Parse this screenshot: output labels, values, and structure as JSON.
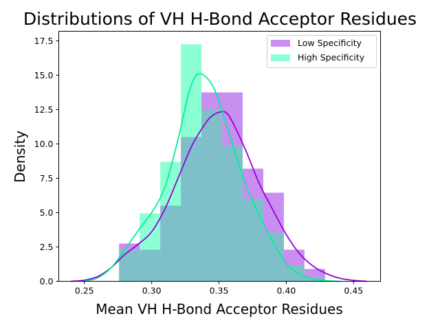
{
  "chart_data": {
    "type": "histogram",
    "title": "Distributions of VH H-Bond Acceptor Residues",
    "xlabel": "Mean VH H-Bond Acceptor Residues",
    "ylabel": "Density",
    "xlim": [
      0.231,
      0.47
    ],
    "ylim": [
      0,
      18.2
    ],
    "x_ticks": [
      0.25,
      0.3,
      0.35,
      0.4,
      0.45
    ],
    "x_tick_labels": [
      "0.25",
      "0.30",
      "0.35",
      "0.40",
      "0.45"
    ],
    "y_ticks": [
      0.0,
      2.5,
      5.0,
      7.5,
      10.0,
      12.5,
      15.0,
      17.5
    ],
    "y_tick_labels": [
      "0.0",
      "2.5",
      "5.0",
      "7.5",
      "10.0",
      "12.5",
      "15.0",
      "17.5"
    ],
    "legend_position": "upper right",
    "overlap_color": "#7fbfca",
    "series": [
      {
        "name": "Low Specificity",
        "color": "#c88ef0",
        "line_color": "#9400d3",
        "bins": [
          {
            "x0": 0.2758,
            "x1": 0.2911,
            "y": 2.75
          },
          {
            "x0": 0.2911,
            "x1": 0.3064,
            "y": 2.3
          },
          {
            "x0": 0.3064,
            "x1": 0.3217,
            "y": 5.5
          },
          {
            "x0": 0.3217,
            "x1": 0.337,
            "y": 10.5
          },
          {
            "x0": 0.337,
            "x1": 0.3523,
            "y": 13.75
          },
          {
            "x0": 0.3523,
            "x1": 0.3676,
            "y": 13.75
          },
          {
            "x0": 0.3676,
            "x1": 0.3829,
            "y": 8.2
          },
          {
            "x0": 0.3829,
            "x1": 0.3982,
            "y": 6.45
          },
          {
            "x0": 0.3982,
            "x1": 0.4135,
            "y": 2.3
          },
          {
            "x0": 0.4135,
            "x1": 0.4288,
            "y": 0.9
          }
        ],
        "kde": [
          [
            0.24,
            0.0
          ],
          [
            0.25,
            0.08
          ],
          [
            0.26,
            0.35
          ],
          [
            0.27,
            1.0
          ],
          [
            0.28,
            1.95
          ],
          [
            0.29,
            2.7
          ],
          [
            0.3,
            3.6
          ],
          [
            0.31,
            5.3
          ],
          [
            0.32,
            7.6
          ],
          [
            0.33,
            9.9
          ],
          [
            0.34,
            11.5
          ],
          [
            0.345,
            12.05
          ],
          [
            0.35,
            12.3
          ],
          [
            0.355,
            12.3
          ],
          [
            0.36,
            11.6
          ],
          [
            0.37,
            9.5
          ],
          [
            0.38,
            7.1
          ],
          [
            0.39,
            5.2
          ],
          [
            0.4,
            3.4
          ],
          [
            0.41,
            2.0
          ],
          [
            0.42,
            1.1
          ],
          [
            0.43,
            0.55
          ],
          [
            0.44,
            0.22
          ],
          [
            0.45,
            0.07
          ],
          [
            0.46,
            0.0
          ]
        ]
      },
      {
        "name": "High Specificity",
        "color": "#8cffd4",
        "line_color": "#00ef9a",
        "bins": [
          {
            "x0": 0.2758,
            "x1": 0.2911,
            "y": 2.3
          },
          {
            "x0": 0.2911,
            "x1": 0.3064,
            "y": 4.95
          },
          {
            "x0": 0.3064,
            "x1": 0.3217,
            "y": 8.7
          },
          {
            "x0": 0.3217,
            "x1": 0.337,
            "y": 17.25
          },
          {
            "x0": 0.337,
            "x1": 0.3523,
            "y": 12.5
          },
          {
            "x0": 0.3523,
            "x1": 0.3676,
            "y": 9.85
          },
          {
            "x0": 0.3676,
            "x1": 0.3829,
            "y": 6.0
          },
          {
            "x0": 0.3829,
            "x1": 0.3982,
            "y": 3.55
          },
          {
            "x0": 0.3982,
            "x1": 0.4135,
            "y": 1.15
          },
          {
            "x0": 0.4135,
            "x1": 0.4288,
            "y": 0.3
          }
        ],
        "kde": [
          [
            0.25,
            0.0
          ],
          [
            0.26,
            0.25
          ],
          [
            0.27,
            1.0
          ],
          [
            0.28,
            2.3
          ],
          [
            0.29,
            3.7
          ],
          [
            0.3,
            5.0
          ],
          [
            0.31,
            6.9
          ],
          [
            0.32,
            10.5
          ],
          [
            0.327,
            13.5
          ],
          [
            0.332,
            14.85
          ],
          [
            0.336,
            15.1
          ],
          [
            0.34,
            14.9
          ],
          [
            0.345,
            14.3
          ],
          [
            0.35,
            13.1
          ],
          [
            0.36,
            10.0
          ],
          [
            0.37,
            7.0
          ],
          [
            0.38,
            4.8
          ],
          [
            0.39,
            2.9
          ],
          [
            0.4,
            1.3
          ],
          [
            0.41,
            0.5
          ],
          [
            0.42,
            0.17
          ],
          [
            0.43,
            0.04
          ],
          [
            0.44,
            0.0
          ]
        ]
      }
    ]
  }
}
